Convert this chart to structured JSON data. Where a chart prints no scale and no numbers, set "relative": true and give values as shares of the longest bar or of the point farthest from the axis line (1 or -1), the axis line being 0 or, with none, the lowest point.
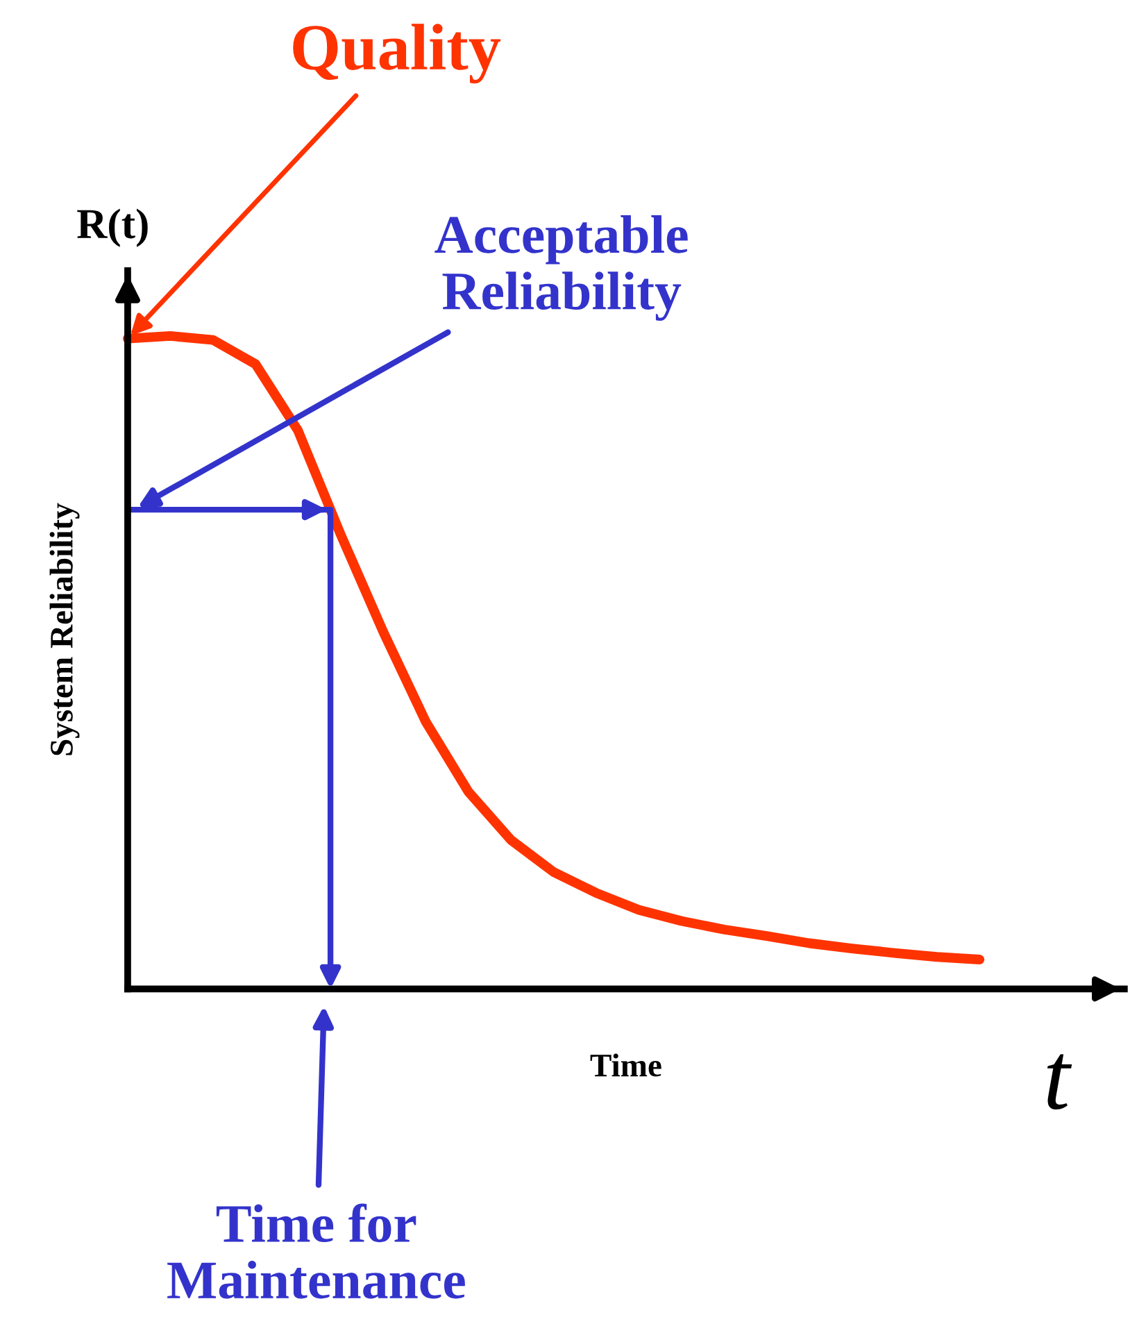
{
  "chart_data": {
    "type": "line",
    "relative": true,
    "xlabel": "Time",
    "ylabel": "System Reliability",
    "categories": [
      null,
      null,
      null,
      null,
      null,
      null,
      null,
      null,
      null,
      null,
      null,
      null,
      null,
      null,
      null,
      null,
      null,
      null,
      null,
      null,
      null
    ],
    "series": [
      {
        "color": "#ff3300",
        "values": [
          0.996,
          1.0,
          0.994,
          0.957,
          0.855,
          0.696,
          0.547,
          0.409,
          0.302,
          0.228,
          0.179,
          0.147,
          0.121,
          0.104,
          0.091,
          0.081,
          0.07,
          0.062,
          0.055,
          0.049,
          0.045
        ]
      }
    ],
    "ref_lines": [
      {
        "axis": "y",
        "value": 0.734,
        "label": "Acceptable Reliability",
        "color": "#3333cc"
      }
    ],
    "annotations": [
      "Quality",
      "R(t)",
      "t",
      "Time for Maintenance"
    ],
    "grid": false,
    "legend": false,
    "marker": "none",
    "line_style": "solid"
  }
}
